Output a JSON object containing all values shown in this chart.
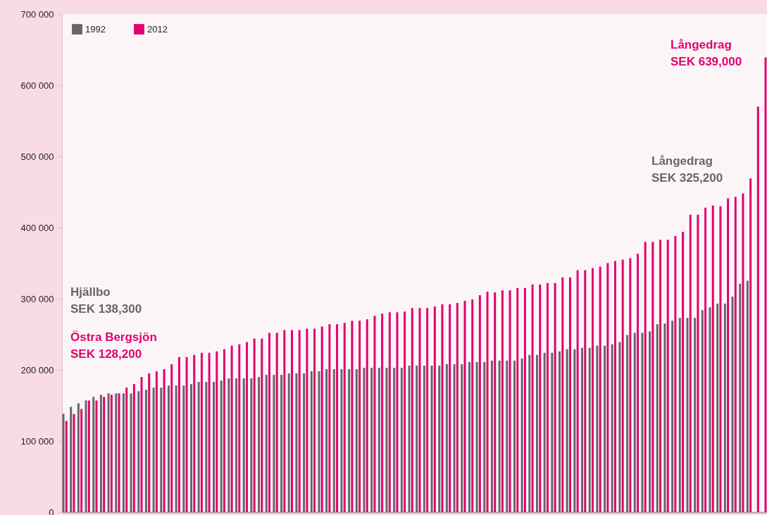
{
  "chart_data": {
    "type": "bar",
    "categories": [
      null,
      null,
      null,
      null,
      null,
      null,
      null,
      null,
      null,
      null,
      null,
      null,
      null,
      null,
      null,
      null,
      null,
      null,
      null,
      null,
      null,
      null,
      null,
      null,
      null,
      null,
      null,
      null,
      null,
      null,
      null,
      null,
      null,
      null,
      null,
      null,
      null,
      null,
      null,
      null,
      null,
      null,
      null,
      null,
      null,
      null,
      null,
      null,
      null,
      null,
      null,
      null,
      null,
      null,
      null,
      null,
      null,
      null,
      null,
      null,
      null,
      null,
      null,
      null,
      null,
      null,
      null,
      null,
      null,
      null,
      null,
      null,
      null,
      null,
      null,
      null,
      null,
      null,
      null,
      null,
      null,
      null,
      null,
      null,
      null,
      null,
      null,
      null,
      null,
      null,
      null,
      null,
      null,
      null
    ],
    "series": [
      {
        "name": "1992",
        "color": "#666666",
        "values": [
          138300,
          148000,
          153000,
          157000,
          162000,
          165000,
          167000,
          167000,
          167000,
          167000,
          170000,
          172000,
          175000,
          175000,
          178000,
          178000,
          178000,
          180000,
          183000,
          183000,
          183000,
          185000,
          188000,
          188000,
          188000,
          188000,
          190000,
          193000,
          193000,
          193000,
          195000,
          195000,
          195000,
          198000,
          198000,
          201000,
          201000,
          201000,
          201000,
          201000,
          203000,
          203000,
          203000,
          203000,
          203000,
          203000,
          206000,
          206000,
          206000,
          206000,
          206000,
          208000,
          208000,
          208000,
          211000,
          211000,
          211000,
          213000,
          213000,
          213000,
          213000,
          216000,
          221000,
          221000,
          224000,
          224000,
          226000,
          229000,
          229000,
          231000,
          231000,
          234000,
          234000,
          236000,
          239000,
          249000,
          252000,
          252000,
          254000,
          264000,
          265000,
          269000,
          273000,
          273000,
          273000,
          284000,
          288000,
          293000,
          293000,
          303000,
          321000,
          325200,
          null,
          null
        ]
      },
      {
        "name": "2012",
        "color": "#e0006f",
        "values": [
          128200,
          138000,
          145000,
          157000,
          157000,
          162000,
          165000,
          167000,
          175000,
          180000,
          190000,
          195000,
          198000,
          201000,
          208000,
          218000,
          218000,
          221000,
          224000,
          224000,
          226000,
          229000,
          234000,
          236000,
          239000,
          244000,
          244000,
          252000,
          252000,
          256000,
          256000,
          256000,
          258000,
          258000,
          261000,
          264000,
          264000,
          266000,
          269000,
          269000,
          271000,
          276000,
          279000,
          281000,
          281000,
          282000,
          287000,
          287000,
          287000,
          289000,
          292000,
          292000,
          294000,
          297000,
          299000,
          305000,
          310000,
          309000,
          312000,
          312000,
          315000,
          315000,
          320000,
          320000,
          322000,
          322000,
          330000,
          330000,
          340000,
          340000,
          343000,
          345000,
          350000,
          353000,
          355000,
          357000,
          363000,
          380000,
          380000,
          383000,
          383000,
          388000,
          394000,
          418000,
          418000,
          428000,
          431000,
          430000,
          441000,
          443000,
          448000,
          469000,
          570000,
          639000
        ]
      }
    ],
    "ylim": [
      0,
      700000
    ],
    "yticks": [
      {
        "value": 0,
        "label": "0"
      },
      {
        "value": 100000,
        "label": "100 000"
      },
      {
        "value": 200000,
        "label": "200 000"
      },
      {
        "value": 300000,
        "label": "300 000"
      },
      {
        "value": 400000,
        "label": "400 000"
      },
      {
        "value": 500000,
        "label": "500 000"
      },
      {
        "value": 600000,
        "label": "600 000"
      },
      {
        "value": 700000,
        "label": "700 000"
      }
    ],
    "annotations": [
      "Hjällbo\nSEK 138,300",
      "Östra Bergsjön\nSEK 128,200",
      "Långedrag\nSEK 325,200",
      "Långedrag\nSEK 639,000"
    ],
    "legend": "top left",
    "grid": false,
    "tick_labels": "y"
  }
}
